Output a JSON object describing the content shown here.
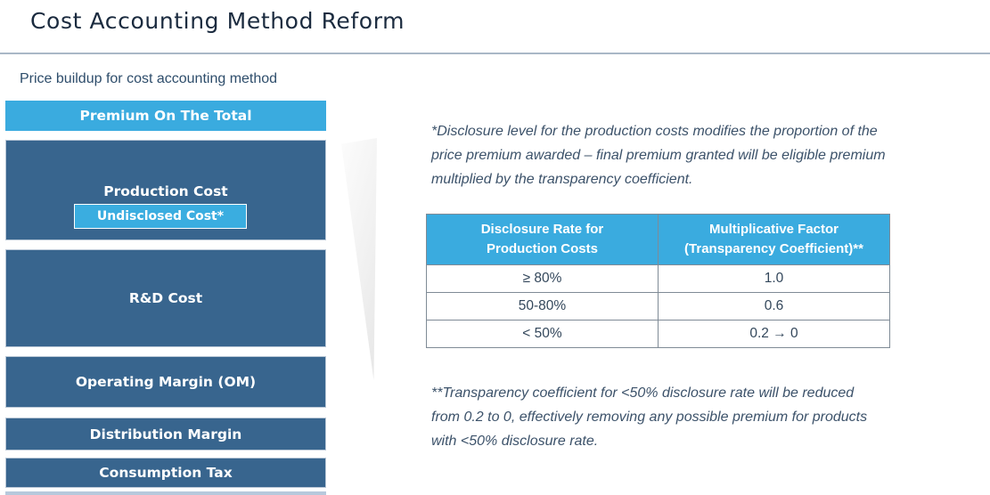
{
  "slide": {
    "title": "Cost Accounting Method Reform",
    "subtitle": "Price buildup for cost accounting method"
  },
  "stack": {
    "items": [
      {
        "label": "Premium On The Total"
      },
      {
        "label": "Production Cost",
        "sub_label": "Undisclosed Cost*"
      },
      {
        "label": "R&D Cost"
      },
      {
        "label": "Operating Margin (OM)"
      },
      {
        "label": "Distribution Margin"
      },
      {
        "label": "Consumption Tax"
      }
    ]
  },
  "notes": {
    "footnote1": "*Disclosure level for the production costs modifies the proportion of the price premium awarded – final premium granted will be eligible premium multiplied by the transparency coefficient.",
    "footnote2": "**Transparency coefficient for <50% disclosure rate will be reduced from 0.2 to 0, effectively removing any possible premium for products with <50% disclosure rate."
  },
  "table": {
    "headers": [
      {
        "line1": "Disclosure Rate for",
        "line2": "Production Costs"
      },
      {
        "line1": "Multiplicative Factor",
        "line2": "(Transparency Coefficient)**"
      }
    ],
    "rows": [
      [
        "≥ 80%",
        "1.0"
      ],
      [
        "50-80%",
        "0.6"
      ],
      [
        "< 50%",
        "0.2 → 0"
      ]
    ]
  },
  "colors": {
    "accent_light_blue": "#3aade0",
    "accent_dark_blue": "#38658e",
    "title_navy": "#1b2b3f",
    "text_slate": "#3c526a",
    "divider_gray_blue": "#a9b7c6",
    "table_border_gray": "#7f8b96"
  }
}
